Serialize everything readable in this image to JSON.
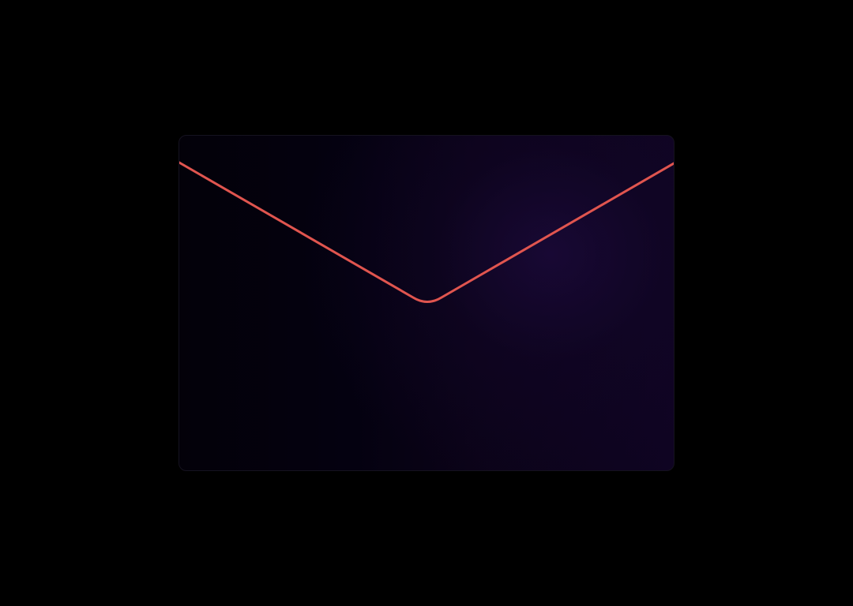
{
  "envelope": {
    "icon": "envelope-icon",
    "surface_color": "#0a0318",
    "glow_color": "#1c0a3c",
    "border_color": "#15121f",
    "flap_line_color": "#e0554f"
  },
  "background_color": "#000000"
}
